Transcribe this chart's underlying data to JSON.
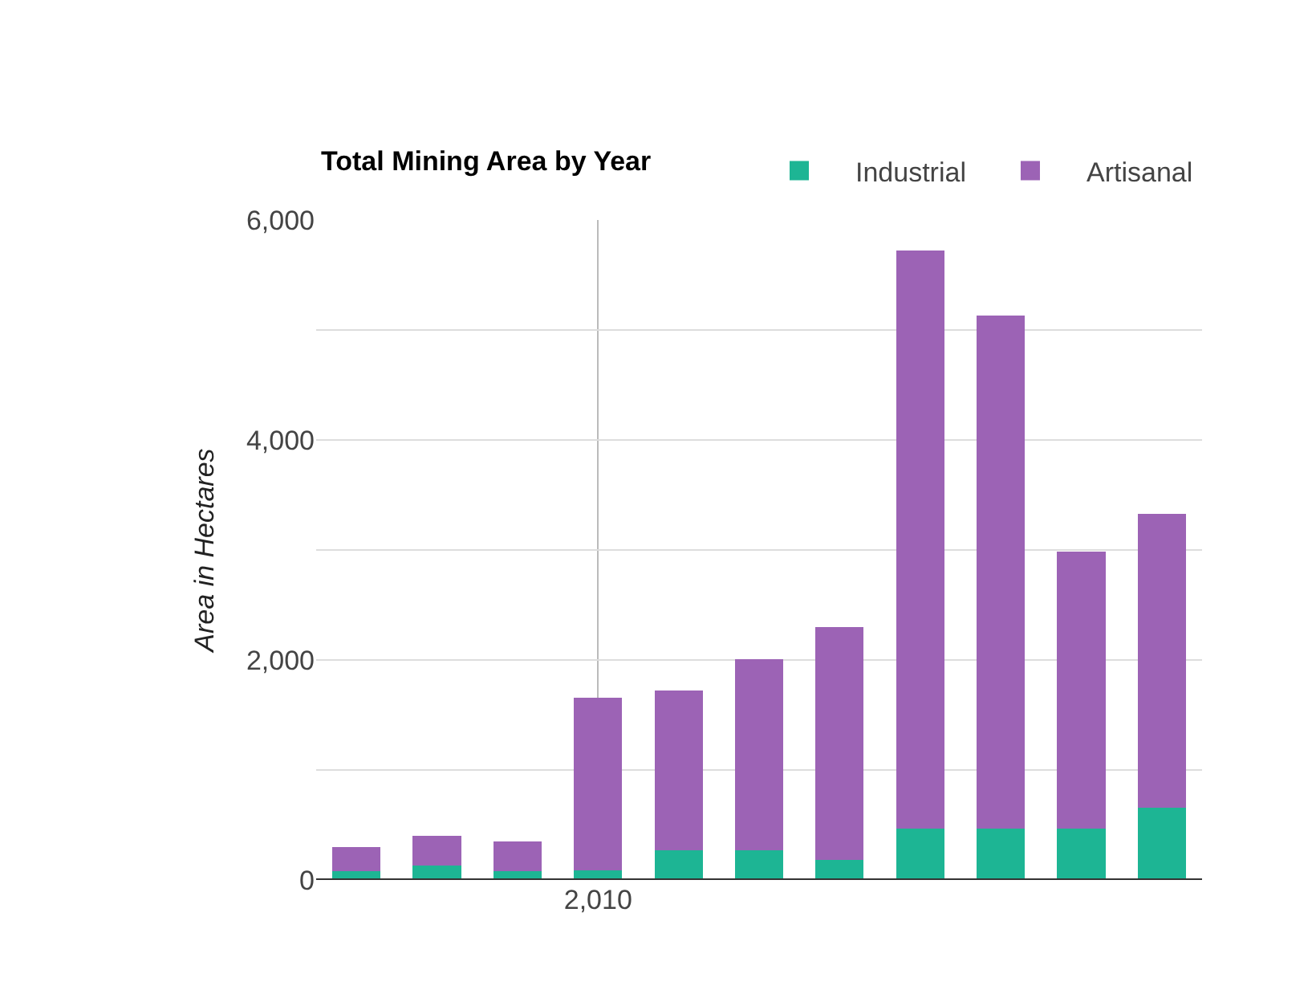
{
  "chart_data": {
    "type": "bar",
    "title": "Total Mining Area by Year",
    "ylabel": "Area in Hectares",
    "stacked": true,
    "categories": [
      null,
      null,
      null,
      "2,010",
      null,
      null,
      null,
      null,
      null,
      null,
      null
    ],
    "series": [
      {
        "name": "Industrial",
        "color": "#1db594",
        "values": [
          80,
          130,
          80,
          90,
          270,
          270,
          180,
          470,
          470,
          470,
          660
        ]
      },
      {
        "name": "Artisanal",
        "color": "#9c63b5",
        "values": [
          220,
          270,
          270,
          1570,
          1450,
          1740,
          2120,
          5250,
          4665,
          2515,
          2665
        ]
      }
    ],
    "ylim": [
      0,
      6000
    ],
    "yticks": [
      {
        "value": 0,
        "label": "0"
      },
      {
        "value": 1000,
        "label": null
      },
      {
        "value": 2000,
        "label": "2,000"
      },
      {
        "value": 3000,
        "label": null
      },
      {
        "value": 4000,
        "label": "4,000"
      },
      {
        "value": 5000,
        "label": null
      },
      {
        "value": 6000,
        "label": "6,000"
      }
    ],
    "grid": true,
    "legend": "top right"
  }
}
